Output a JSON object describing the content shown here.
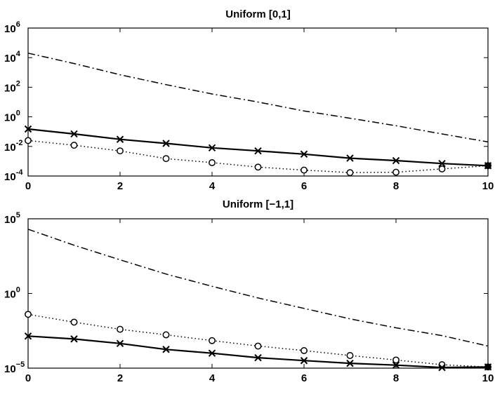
{
  "chart_data": [
    {
      "type": "line",
      "title": "Uniform [0,1]",
      "xlabel": "",
      "ylabel": "",
      "xlim": [
        0,
        10
      ],
      "ylim_log10": [
        -4,
        6
      ],
      "yscale": "log",
      "grid": false,
      "x_ticks": [
        "0",
        "2",
        "4",
        "6",
        "8",
        "10"
      ],
      "y_ticks": [
        {
          "base": "10",
          "exp": "6"
        },
        {
          "base": "10",
          "exp": "4"
        },
        {
          "base": "10",
          "exp": "2"
        },
        {
          "base": "10",
          "exp": "0"
        },
        {
          "base": "10",
          "exp": "-2"
        },
        {
          "base": "10",
          "exp": "-4"
        }
      ],
      "x": [
        0,
        1,
        2,
        3,
        4,
        5,
        6,
        7,
        8,
        9,
        10
      ],
      "series": [
        {
          "style": "dashdot",
          "marker": "none",
          "values": [
            20000,
            4000,
            700,
            150,
            35,
            10,
            2.5,
            0.8,
            0.25,
            0.07,
            0.02
          ]
        },
        {
          "style": "solid",
          "marker": "x",
          "values": [
            0.15,
            0.07,
            0.03,
            0.016,
            0.008,
            0.005,
            0.003,
            0.0016,
            0.0011,
            0.0007,
            0.0005
          ]
        },
        {
          "style": "dotted",
          "marker": "o",
          "values": [
            0.025,
            0.012,
            0.005,
            0.0015,
            0.0008,
            0.0004,
            0.00025,
            0.00017,
            0.00018,
            0.0003,
            0.0005
          ]
        }
      ]
    },
    {
      "type": "line",
      "title": "Uniform [−1,1]",
      "xlabel": "",
      "ylabel": "",
      "xlim": [
        0,
        10
      ],
      "ylim_log10": [
        -5,
        5
      ],
      "yscale": "log",
      "grid": false,
      "x_ticks": [
        "0",
        "2",
        "4",
        "6",
        "8",
        "10"
      ],
      "y_ticks": [
        {
          "base": "10",
          "exp": "5"
        },
        {
          "base": "10",
          "exp": "0"
        },
        {
          "base": "10",
          "exp": "−5"
        }
      ],
      "x": [
        0,
        1,
        2,
        3,
        4,
        5,
        6,
        7,
        8,
        9,
        10
      ],
      "series": [
        {
          "style": "dashdot",
          "marker": "none",
          "values": [
            20000,
            1700,
            180,
            20,
            3,
            0.5,
            0.1,
            0.02,
            0.005,
            0.0015,
            0.0003
          ]
        },
        {
          "style": "dotted",
          "marker": "o",
          "values": [
            0.04,
            0.012,
            0.004,
            0.0017,
            0.0007,
            0.0003,
            0.00015,
            7e-05,
            3.5e-05,
            1.7e-05,
            1.2e-05
          ]
        },
        {
          "style": "solid",
          "marker": "x",
          "values": [
            0.0014,
            0.0009,
            0.00045,
            0.00018,
            0.0001,
            5e-05,
            3.2e-05,
            2.1e-05,
            1.6e-05,
            1.1e-05,
            1.2e-05
          ]
        }
      ]
    }
  ]
}
